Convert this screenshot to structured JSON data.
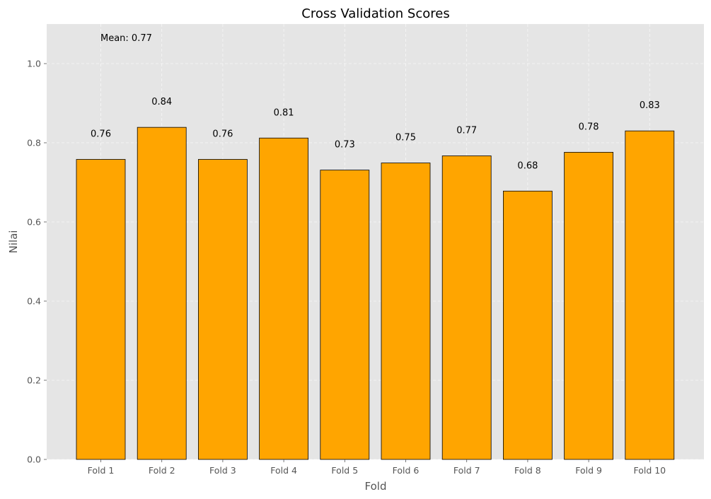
{
  "chart_data": {
    "type": "bar",
    "title": "Cross Validation Scores",
    "xlabel": "Fold",
    "ylabel": "Nilai",
    "categories": [
      "Fold 1",
      "Fold 2",
      "Fold 3",
      "Fold 4",
      "Fold 5",
      "Fold 6",
      "Fold 7",
      "Fold 8",
      "Fold 9",
      "Fold 10"
    ],
    "values": [
      0.758,
      0.839,
      0.758,
      0.812,
      0.731,
      0.749,
      0.767,
      0.678,
      0.776,
      0.83
    ],
    "data_labels": [
      "0.76",
      "0.84",
      "0.76",
      "0.81",
      "0.73",
      "0.75",
      "0.77",
      "0.68",
      "0.78",
      "0.83"
    ],
    "ylim": [
      0,
      1.1
    ],
    "yticks": [
      0.0,
      0.2,
      0.4,
      0.6,
      0.8,
      1.0
    ],
    "ytick_labels": [
      "0.0",
      "0.2",
      "0.4",
      "0.6",
      "0.8",
      "1.0"
    ],
    "annotation": "Mean: 0.77",
    "grid": true,
    "colors": {
      "bar": "#ffa500",
      "bar_edge": "#000000",
      "plot_background": "#e5e5e5",
      "grid": "#ffffff"
    }
  }
}
